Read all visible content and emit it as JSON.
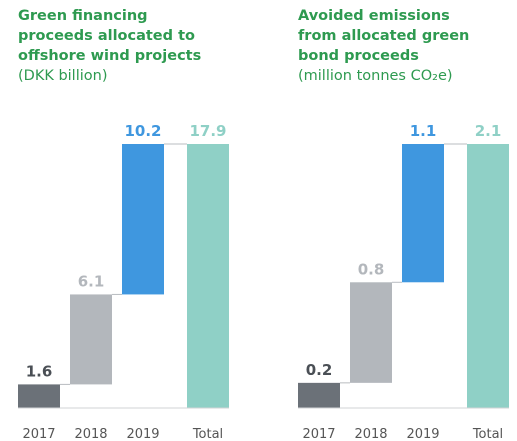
{
  "chart_data": [
    {
      "type": "waterfall",
      "title": [
        "Green financing",
        "proceeds allocated to",
        "offshore wind projects"
      ],
      "subtitle": "(DKK billion)",
      "categories": [
        "2017",
        "2018",
        "2019",
        "Total"
      ],
      "values": [
        1.6,
        6.1,
        10.2,
        17.9
      ],
      "colors": [
        "#6b7178",
        "#b3b7bc",
        "#3f97df",
        "#8fd0c6"
      ]
    },
    {
      "type": "waterfall",
      "title": [
        "Avoided emissions",
        "from allocated green",
        "bond proceeds"
      ],
      "subtitle": "(million tonnes CO₂e)",
      "categories": [
        "2017",
        "2018",
        "2019",
        "Total"
      ],
      "values": [
        0.2,
        0.8,
        1.1,
        2.1
      ],
      "colors": [
        "#6b7178",
        "#b3b7bc",
        "#3f97df",
        "#8fd0c6"
      ]
    }
  ]
}
